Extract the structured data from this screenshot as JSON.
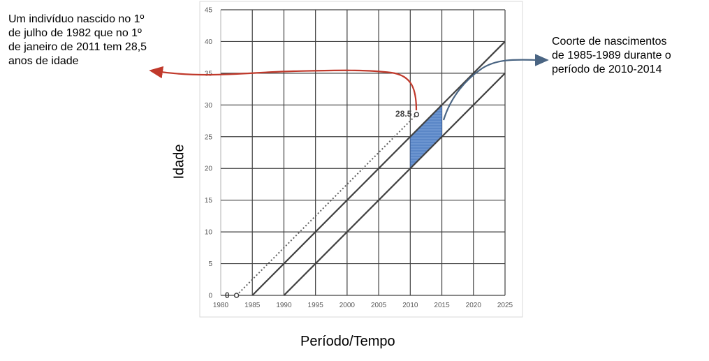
{
  "annotations": {
    "left": "Um indivíduo nascido no 1º\nde julho de 1982 que no 1º\nde janeiro de 2011 tem 28,5\nanos de idade",
    "right": "Coorte de nascimentos\nde 1985-1989 durante o\nperíodo de 2010-2014"
  },
  "chart_data": {
    "type": "line",
    "xlabel": "Período/Tempo",
    "ylabel": "Idade",
    "xlim": [
      1980,
      2025
    ],
    "ylim": [
      0,
      45
    ],
    "x_ticks": [
      "1980",
      "1985",
      "1990",
      "1995",
      "2000",
      "2005",
      "2010",
      "2015",
      "2020",
      "2025"
    ],
    "y_ticks": [
      "0",
      "5",
      "10",
      "15",
      "20",
      "25",
      "30",
      "35",
      "40",
      "45"
    ],
    "grid": true,
    "lifelines": [
      {
        "start": [
          1985,
          0
        ],
        "end": [
          2025,
          40
        ],
        "style": "solid"
      },
      {
        "start": [
          1990,
          0
        ],
        "end": [
          2025,
          35
        ],
        "style": "solid"
      },
      {
        "start": [
          1982.5,
          0
        ],
        "end": [
          2011,
          28.5
        ],
        "style": "dotted"
      }
    ],
    "cohort_polygon": [
      [
        2010,
        20
      ],
      [
        2015,
        25
      ],
      [
        2015,
        30
      ],
      [
        2010,
        25
      ]
    ],
    "points": [
      {
        "x": 1982.5,
        "y": 0,
        "label": "0"
      },
      {
        "x": 2011,
        "y": 28.5,
        "label": "28.5"
      }
    ],
    "colors": {
      "cohort_fill": "#5b87c7",
      "left_arrow": "#c0392b",
      "right_arrow": "#4a6583",
      "lines": "#404040"
    }
  }
}
